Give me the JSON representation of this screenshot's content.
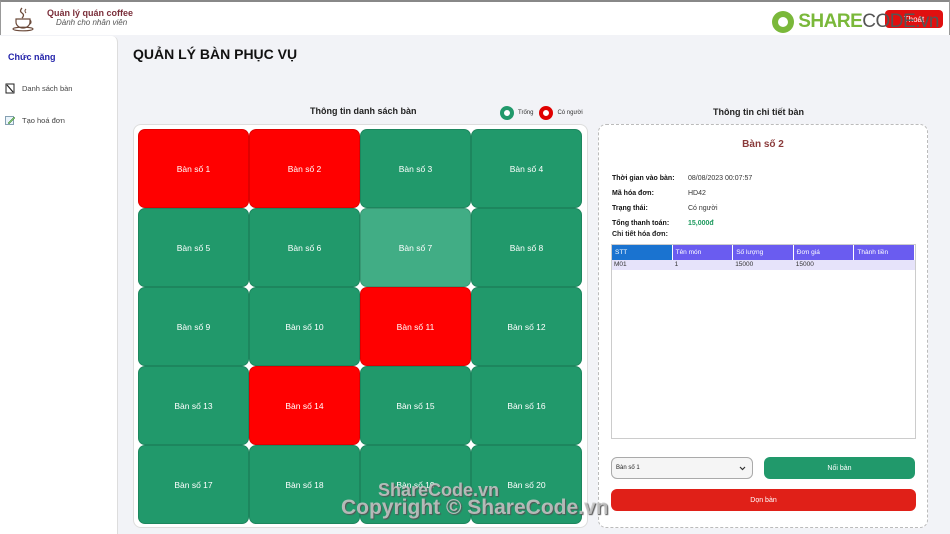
{
  "app": {
    "title": "Quản lý quán coffee",
    "subtitle": "Dành cho nhân viên",
    "logout_label": "Thoát",
    "watermark_brand_share": "SHARE",
    "watermark_brand_code": "CODE.vn"
  },
  "sidebar": {
    "title": "Chức năng",
    "items": [
      {
        "label": "Danh sách bàn",
        "icon": "table-list-icon"
      },
      {
        "label": "Tạo hoá đơn",
        "icon": "edit-icon"
      }
    ]
  },
  "page": {
    "title": "QUẢN LÝ BÀN PHỤC VỤ"
  },
  "table_list": {
    "title": "Thông tin danh sách bàn",
    "legend": [
      {
        "label": "Trống",
        "color": "#21996b"
      },
      {
        "label": "Có người",
        "color": "#ff0000"
      }
    ],
    "tables": [
      {
        "label": "Bàn số 1",
        "status": "busy"
      },
      {
        "label": "Bàn số 2",
        "status": "busy"
      },
      {
        "label": "Bàn số 3",
        "status": "free"
      },
      {
        "label": "Bàn số 4",
        "status": "free"
      },
      {
        "label": "Bàn số 5",
        "status": "free"
      },
      {
        "label": "Bàn số 6",
        "status": "free"
      },
      {
        "label": "Bàn số 7",
        "status": "selected"
      },
      {
        "label": "Bàn số 8",
        "status": "free"
      },
      {
        "label": "Bàn số 9",
        "status": "free"
      },
      {
        "label": "Bàn số 10",
        "status": "free"
      },
      {
        "label": "Bàn số 11",
        "status": "busy"
      },
      {
        "label": "Bàn số 12",
        "status": "free"
      },
      {
        "label": "Bàn số 13",
        "status": "free"
      },
      {
        "label": "Bàn số 14",
        "status": "busy"
      },
      {
        "label": "Bàn số 15",
        "status": "free"
      },
      {
        "label": "Bàn số 16",
        "status": "free"
      },
      {
        "label": "Bàn số 17",
        "status": "free"
      },
      {
        "label": "Bàn số 18",
        "status": "free"
      },
      {
        "label": "Bàn số 19",
        "status": "free"
      },
      {
        "label": "Bàn số 20",
        "status": "free"
      }
    ]
  },
  "detail": {
    "title": "Thông tin chi tiết bàn",
    "table_name": "Bàn số 2",
    "info": [
      {
        "label": "Thời gian vào bàn:",
        "value": "08/08/2023 00:07:57"
      },
      {
        "label": "Mã hóa đơn:",
        "value": "HD42"
      },
      {
        "label": "Trạng thái:",
        "value": "Có người"
      },
      {
        "label": "Tổng thanh toán:",
        "value": "15,000đ"
      }
    ],
    "invoice_label": "Chi tiết hóa đơn:",
    "invoice_columns": [
      "STT",
      "Tên món",
      "Số lượng",
      "Đơn giá",
      "Thành tiền"
    ],
    "invoice_rows": [
      [
        "M01",
        "1",
        "15000",
        "15000",
        ""
      ]
    ],
    "merge_select_value": "Bàn số 1",
    "merge_button": "Nối bàn",
    "clear_button": "Dọn bàn"
  },
  "watermark": {
    "line1": "ShareCode.vn",
    "line2": "Copyright © ShareCode.vn"
  }
}
